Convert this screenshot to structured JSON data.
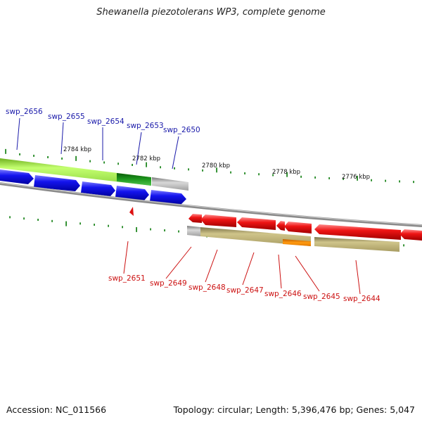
{
  "title": "Shewanella piezotolerans WP3, complete genome",
  "footer": {
    "accession": "Accession: NC_011566",
    "summary": "Topology: circular; Length: 5,396,476 bp; Genes: 5,047"
  },
  "colors": {
    "forward_gene": "#1a1ae6",
    "reverse_gene": "#e61a1a",
    "forward_label": "#1a1aaa",
    "reverse_label": "#cc1111",
    "tick": "#228822",
    "backbone": "#808080"
  },
  "kbp_labels": [
    "2784 kbp",
    "2782 kbp",
    "2780 kbp",
    "2778 kbp",
    "2776 kbp"
  ],
  "forward_gene_labels": [
    "swp_2656",
    "swp_2655",
    "swp_2654",
    "swp_2653",
    "swp_2650"
  ],
  "reverse_gene_labels": [
    "swp_2651",
    "swp_2649",
    "swp_2648",
    "swp_2647",
    "swp_2646",
    "swp_2645",
    "swp_2644"
  ]
}
